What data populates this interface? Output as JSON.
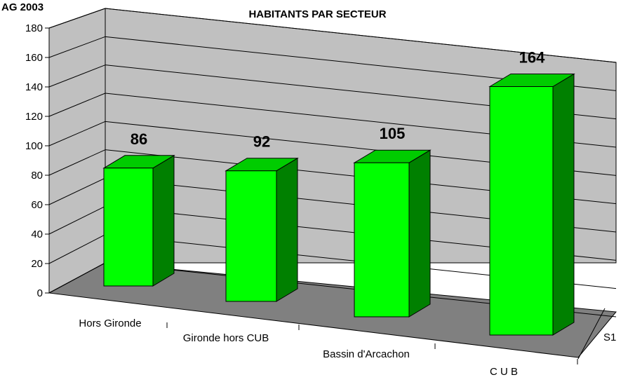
{
  "corner_label": "AG 2003",
  "colors": {
    "bar_front": "#00ff00",
    "bar_top": "#00cc00",
    "bar_side": "#008000",
    "wall": "#c0c0c0",
    "floor": "#808080",
    "gridline": "#000000"
  },
  "chart_data": {
    "type": "bar",
    "title": "HABITANTS PAR SECTEUR",
    "categories": [
      "Hors Gironde",
      "Gironde hors CUB",
      "Bassin d'Arcachon",
      "C U B"
    ],
    "series": [
      {
        "name": "S1",
        "values": [
          86,
          92,
          105,
          164
        ]
      }
    ],
    "ylim": [
      0,
      180
    ],
    "yticks": [
      0,
      20,
      40,
      60,
      80,
      100,
      120,
      140,
      160,
      180
    ],
    "data_labels": [
      "86",
      "92",
      "105",
      "164"
    ],
    "series_axis_label": "S1",
    "grid": true,
    "style": "3d-column"
  }
}
